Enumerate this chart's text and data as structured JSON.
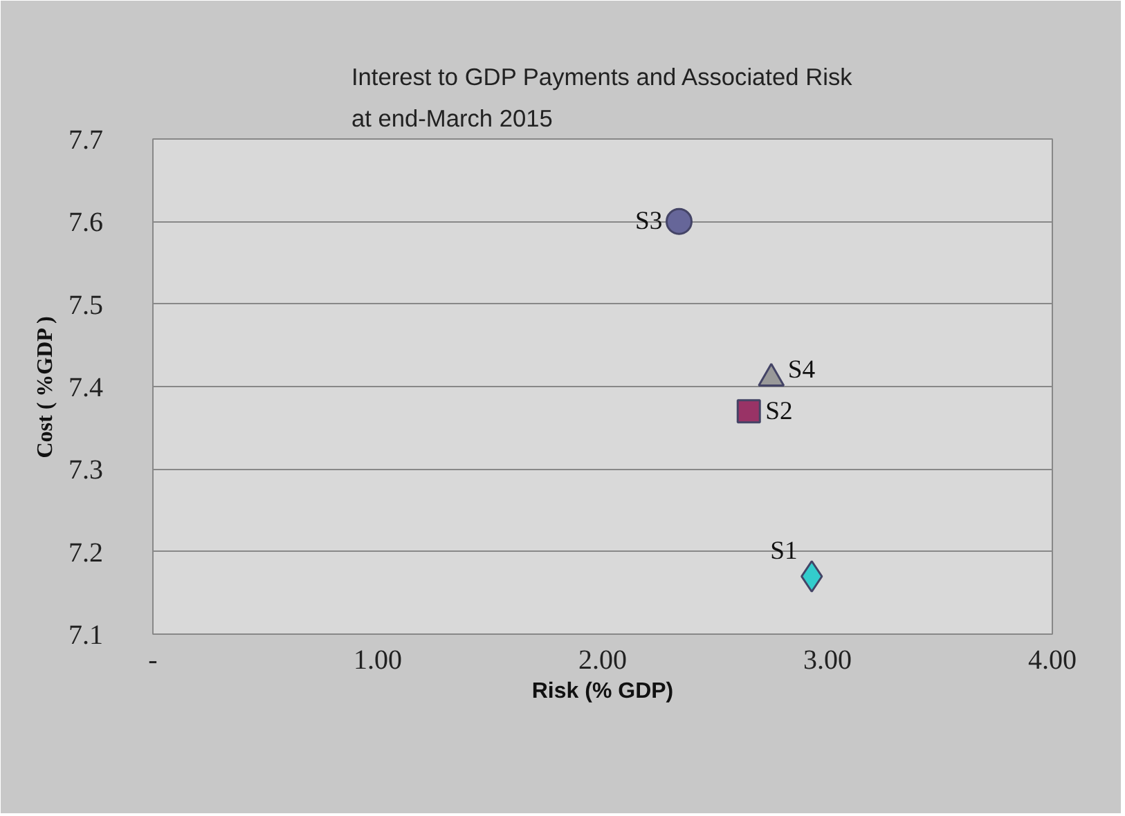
{
  "chart_data": {
    "type": "scatter",
    "title": "Interest to GDP Payments and Associated Risk\nat end-March 2015",
    "xlabel": "Risk (% GDP)",
    "ylabel": "Cost ( %GDP )",
    "xlim": [
      0,
      4
    ],
    "xticks": [
      {
        "value": 0,
        "label": "-"
      },
      {
        "value": 1,
        "label": "1.00"
      },
      {
        "value": 2,
        "label": "2.00"
      },
      {
        "value": 3,
        "label": "3.00"
      },
      {
        "value": 4,
        "label": "4.00"
      }
    ],
    "ylim": [
      7.1,
      7.7
    ],
    "yticks": [
      7.1,
      7.2,
      7.3,
      7.4,
      7.5,
      7.6,
      7.7
    ],
    "grid": "y",
    "legend": false,
    "series": [
      {
        "name": "S1",
        "color": "#33cccc",
        "marker": "diamond",
        "x": [
          2.93
        ],
        "values": [
          7.17
        ]
      },
      {
        "name": "S2",
        "color": "#993366",
        "marker": "square",
        "x": [
          2.65
        ],
        "values": [
          7.37
        ]
      },
      {
        "name": "S3",
        "color": "#666699",
        "marker": "circle",
        "x": [
          2.34
        ],
        "values": [
          7.6
        ]
      },
      {
        "name": "S4",
        "color": "#999999",
        "marker": "triangle",
        "x": [
          2.75
        ],
        "values": [
          7.41
        ]
      }
    ]
  }
}
